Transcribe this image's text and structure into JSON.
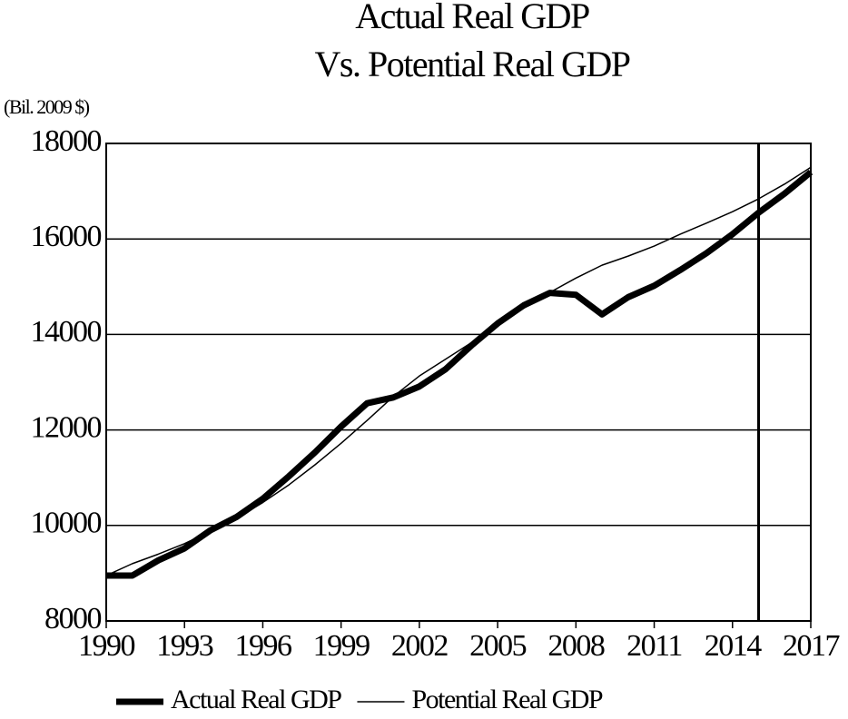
{
  "chart_data": {
    "type": "line",
    "title": "Actual Real GDP",
    "subtitle": "Vs. Potential Real GDP",
    "y_label": "(Bil. 2009 $)",
    "x": [
      1990,
      1991,
      1992,
      1993,
      1994,
      1995,
      1996,
      1997,
      1998,
      1999,
      2000,
      2001,
      2002,
      2003,
      2004,
      2005,
      2006,
      2007,
      2008,
      2009,
      2010,
      2011,
      2012,
      2013,
      2014,
      2015,
      2016,
      2017
    ],
    "series": [
      {
        "name": "Actual Real GDP",
        "color": "#000000",
        "width": 7,
        "values": [
          8950,
          8950,
          9270,
          9520,
          9900,
          10180,
          10560,
          11030,
          11530,
          12070,
          12560,
          12680,
          12910,
          13270,
          13770,
          14230,
          14610,
          14870,
          14830,
          14420,
          14780,
          15020,
          15350,
          15700,
          16100,
          16550,
          16950,
          17400
        ]
      },
      {
        "name": "Potential Real GDP",
        "color": "#000000",
        "width": 1.5,
        "values": [
          8950,
          9200,
          9400,
          9620,
          9880,
          10150,
          10480,
          10850,
          11270,
          11720,
          12200,
          12700,
          13130,
          13480,
          13830,
          14200,
          14550,
          14880,
          15180,
          15450,
          15640,
          15850,
          16100,
          16330,
          16570,
          16840,
          17150,
          17500
        ]
      }
    ],
    "xlim": [
      1990,
      2017
    ],
    "xticks": [
      1990,
      1993,
      1996,
      1999,
      2002,
      2005,
      2008,
      2011,
      2014,
      2017
    ],
    "ylim": [
      8000,
      18000
    ],
    "yticks": [
      8000,
      10000,
      12000,
      14000,
      16000,
      18000
    ],
    "grid": true,
    "vline_x": 2015,
    "legend": "bottom"
  }
}
